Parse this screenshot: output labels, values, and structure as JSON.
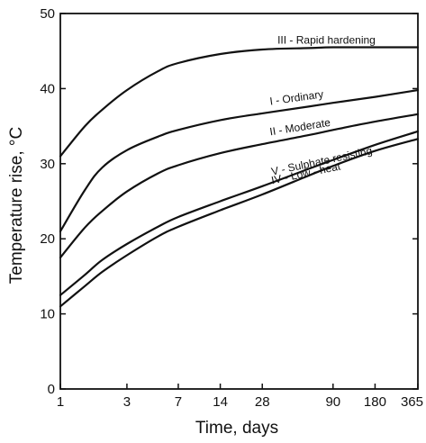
{
  "chart_data": {
    "type": "line",
    "title": "",
    "xlabel": "Time, days",
    "ylabel": "Temperature rise, °C",
    "x_scale": "log",
    "xlim": [
      1,
      365
    ],
    "ylim": [
      0,
      50
    ],
    "x_ticks": [
      1,
      3,
      7,
      14,
      28,
      90,
      180,
      365
    ],
    "x_tick_labels": [
      "1",
      "3",
      "7",
      "14",
      "28",
      "90",
      "180",
      "365"
    ],
    "y_ticks": [
      0,
      10,
      20,
      30,
      40,
      50
    ],
    "y_tick_labels": [
      "0",
      "10",
      "20",
      "30",
      "40",
      "50"
    ],
    "grid": false,
    "legend": "none",
    "series": [
      {
        "name": "III - Rapid hardening",
        "label_text": "III - Rapid hardening",
        "x": [
          1,
          1.5,
          2,
          3,
          5,
          7,
          14,
          28,
          60,
          90,
          180,
          365
        ],
        "y": [
          31,
          35,
          37.2,
          39.8,
          42.3,
          43.4,
          44.6,
          45.2,
          45.4,
          45.5,
          45.5,
          45.5
        ]
      },
      {
        "name": "I - Ordinary",
        "label_text": "I - Ordinary",
        "x": [
          1,
          1.5,
          2,
          3,
          5,
          7,
          14,
          28,
          60,
          90,
          180,
          365
        ],
        "y": [
          21,
          26.5,
          29.5,
          31.8,
          33.6,
          34.5,
          35.8,
          36.7,
          37.6,
          38.1,
          38.9,
          39.8
        ]
      },
      {
        "name": "II - Moderate",
        "label_text": "II - Moderate",
        "x": [
          1,
          1.5,
          2,
          3,
          5,
          7,
          14,
          28,
          60,
          90,
          180,
          365
        ],
        "y": [
          17.5,
          21.5,
          23.7,
          26.3,
          28.7,
          29.8,
          31.4,
          32.6,
          33.8,
          34.5,
          35.6,
          36.6
        ]
      },
      {
        "name": "V - Sulphate resisting",
        "label_text": "V - Sulphate resisting",
        "x": [
          1,
          1.5,
          2,
          3,
          5,
          7,
          14,
          28,
          60,
          90,
          180,
          365
        ],
        "y": [
          12.5,
          15.2,
          17.2,
          19.3,
          21.6,
          22.9,
          25.0,
          27.0,
          29.3,
          30.5,
          32.5,
          34.3
        ]
      },
      {
        "name": "IV - Low - heat",
        "label_text": "IV - Low - heat",
        "x": [
          1,
          1.5,
          2,
          3,
          5,
          7,
          14,
          28,
          60,
          90,
          180,
          365
        ],
        "y": [
          11,
          13.7,
          15.6,
          17.8,
          20.3,
          21.6,
          23.8,
          25.9,
          28.4,
          29.7,
          31.7,
          33.3
        ]
      }
    ]
  }
}
